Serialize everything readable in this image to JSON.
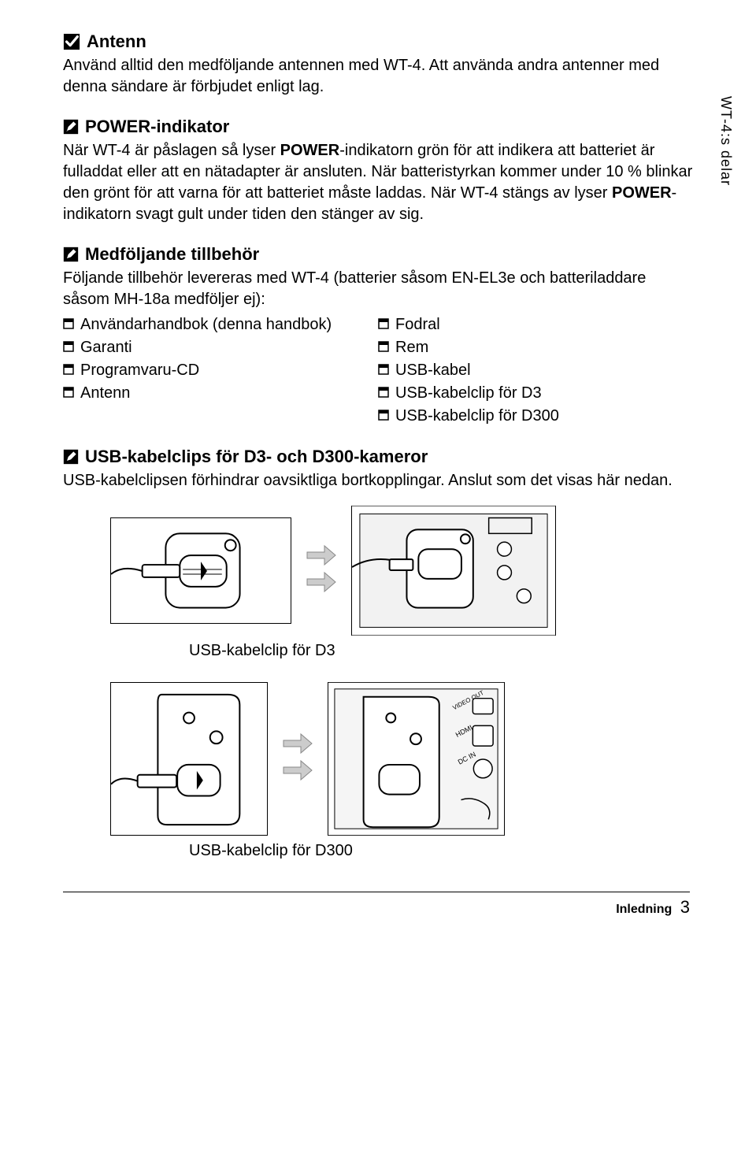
{
  "side_label": "WT-4:s delar",
  "section_antenna": {
    "heading": "Antenn",
    "body": "Använd alltid den medföljande antennen med WT-4. Att använda andra antenner med denna sändare är förbjudet enligt lag."
  },
  "section_power": {
    "heading": "POWER-indikator",
    "body_pre": "När WT-4 är påslagen så lyser ",
    "body_bold1": "POWER",
    "body_mid1": "-indikatorn grön för att indikera att batteriet är fulladdat eller att en nätadapter är ansluten. När batteristyrkan kommer under 10 % blinkar den grönt för att varna för att batteriet måste laddas. När WT-4 stängs av lyser ",
    "body_bold2": "POWER",
    "body_mid2": "-indikatorn svagt gult under tiden den stänger av sig."
  },
  "section_accessories": {
    "heading": "Medföljande tillbehör",
    "intro": "Följande tillbehör levereras med WT-4 (batterier såsom EN-EL3e och batteriladdare såsom MH-18a medföljer ej):",
    "col1": [
      "Användarhandbok (denna handbok)",
      "Garanti",
      "Programvaru-CD",
      "Antenn"
    ],
    "col2": [
      "Fodral",
      "Rem",
      "USB-kabel",
      "USB-kabelclip för D3",
      "USB-kabelclip för D300"
    ]
  },
  "section_clips": {
    "heading": "USB-kabelclips för D3- och D300-kameror",
    "body": "USB-kabelclipsen förhindrar oavsiktliga bortkopplingar. Anslut som det visas här nedan.",
    "caption_d3": "USB-kabelclip för D3",
    "caption_d300": "USB-kabelclip för D300"
  },
  "footer": {
    "label": "Inledning",
    "page": "3"
  }
}
